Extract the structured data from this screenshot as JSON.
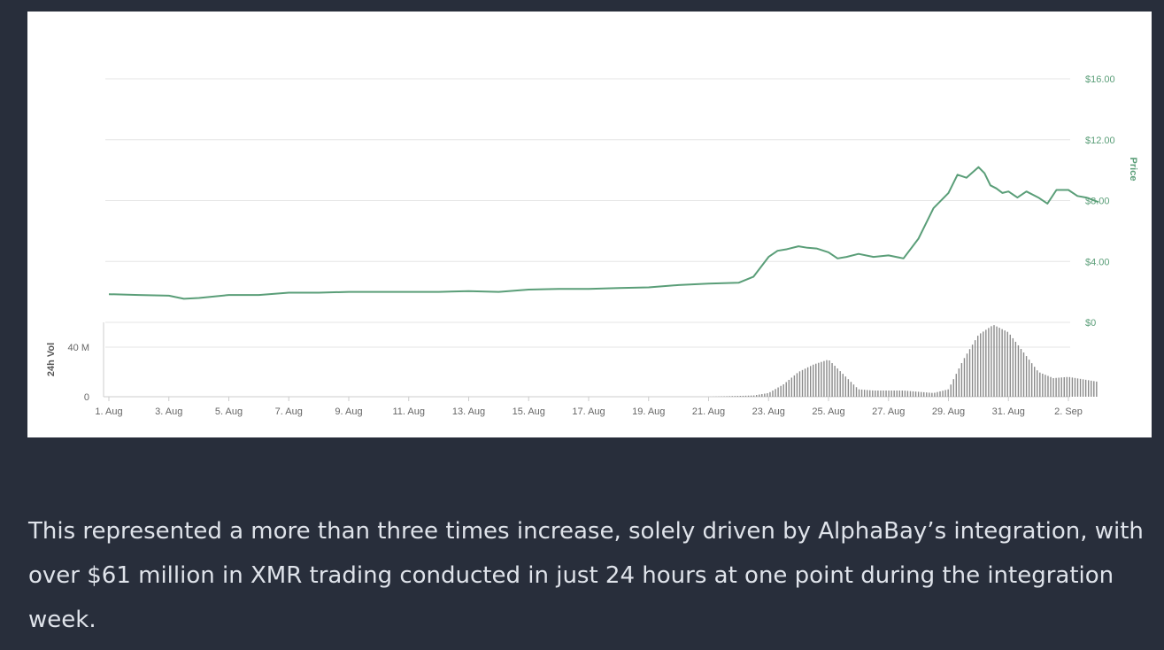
{
  "chart_data": {
    "type": "line",
    "x_range": [
      "2017-08-01",
      "2017-09-02"
    ],
    "price_axis": {
      "label": "Price",
      "ylim": [
        0,
        16
      ],
      "ticks": [
        0,
        4,
        8,
        12,
        16
      ],
      "tick_labels": [
        "$0",
        "$4.00",
        "$8.00",
        "$12.00",
        "$16.00"
      ],
      "position": "right"
    },
    "volume_axis": {
      "label": "24h Vol",
      "ylim": [
        0,
        60000000
      ],
      "ticks": [
        0,
        40000000
      ],
      "tick_labels": [
        "0",
        "40 M"
      ],
      "position": "left"
    },
    "x_tick_labels": [
      "1. Aug",
      "3. Aug",
      "5. Aug",
      "7. Aug",
      "9. Aug",
      "11. Aug",
      "13. Aug",
      "15. Aug",
      "17. Aug",
      "19. Aug",
      "21. Aug",
      "23. Aug",
      "25. Aug",
      "27. Aug",
      "29. Aug",
      "31. Aug",
      "2. Sep"
    ],
    "grid": true,
    "colors": {
      "price_line": "#5a9e78",
      "volume_bars": "#8a8a8a",
      "price_axis": "#5a9e78",
      "volume_axis": "#555555"
    },
    "series": [
      {
        "name": "Price",
        "x": [
          0,
          1,
          2,
          2.5,
          3,
          4,
          5,
          6,
          7,
          8,
          9,
          10,
          11,
          12,
          13,
          14,
          15,
          16,
          17,
          18,
          19,
          20,
          21,
          21.5,
          22,
          22.3,
          22.6,
          23,
          23.3,
          23.6,
          24,
          24.3,
          24.6,
          25,
          25.5,
          26,
          26.5,
          27,
          27.5,
          28,
          28.3,
          28.6,
          29,
          29.2,
          29.4,
          29.6,
          29.8,
          30,
          30.3,
          30.6,
          31,
          31.3,
          31.6,
          32,
          32.3,
          32.6,
          33
        ],
        "y": [
          1.85,
          1.8,
          1.75,
          1.55,
          1.6,
          1.8,
          1.8,
          1.95,
          1.95,
          2.0,
          2.0,
          2.0,
          2.0,
          2.05,
          2.0,
          2.15,
          2.2,
          2.2,
          2.25,
          2.3,
          2.45,
          2.55,
          2.6,
          3.0,
          4.3,
          4.7,
          4.8,
          5.0,
          4.9,
          4.85,
          4.6,
          4.2,
          4.3,
          4.5,
          4.3,
          4.4,
          4.2,
          5.5,
          7.5,
          8.5,
          9.7,
          9.5,
          10.2,
          9.8,
          9.0,
          8.8,
          8.5,
          8.6,
          8.2,
          8.6,
          8.2,
          7.8,
          8.7,
          8.7,
          8.3,
          8.2,
          7.9
        ]
      },
      {
        "name": "24h Vol",
        "x": [
          0,
          5,
          10,
          15,
          20,
          21.5,
          22,
          22.5,
          23,
          23.5,
          24,
          24.5,
          25,
          25.5,
          26,
          26.5,
          27,
          27.5,
          28,
          28.5,
          29,
          29.5,
          30,
          30.5,
          31,
          31.5,
          32,
          32.5,
          33
        ],
        "y": [
          0,
          0,
          0,
          0,
          0,
          1000000,
          3000000,
          10000000,
          20000000,
          26000000,
          30000000,
          18000000,
          6000000,
          5000000,
          5000000,
          5000000,
          4000000,
          3000000,
          6000000,
          30000000,
          50000000,
          58000000,
          52000000,
          36000000,
          20000000,
          15000000,
          16000000,
          14000000,
          12000000
        ]
      }
    ]
  },
  "caption": "This represented a more than three times increase, solely driven by AlphaBay’s integration, with over $61 million in XMR trading conducted in just 24 hours at one point during the integration week."
}
